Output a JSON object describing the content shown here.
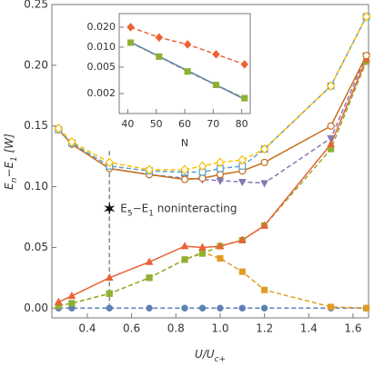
{
  "chart_data": [
    {
      "type": "line",
      "x_label": [
        {
          "text": "U/U"
        },
        {
          "text": "c+",
          "sub": true
        }
      ],
      "y_label": [
        {
          "text": "E"
        },
        {
          "text": "n",
          "sub": true
        },
        {
          "text": "−E"
        },
        {
          "text": "1",
          "sub": true
        },
        {
          "text": " [W]"
        }
      ],
      "x": [
        0.27,
        0.33,
        0.5,
        0.68,
        0.84,
        0.92,
        1.0,
        1.1,
        1.2,
        1.5,
        1.66
      ],
      "xlim": [
        0.24,
        1.67
      ],
      "ylim": [
        -0.008,
        0.25
      ],
      "xticks": [
        0.4,
        0.6,
        0.8,
        {
          "value": 1.0,
          "label": "1.0"
        },
        1.2,
        1.4,
        1.6
      ],
      "yticks": [
        {
          "value": 0,
          "label": "0.00"
        },
        {
          "value": 0.05,
          "label": "0.05"
        },
        {
          "value": 0.1,
          "label": "0.10"
        },
        {
          "value": 0.15,
          "label": "0.15"
        },
        {
          "value": 0.2,
          "label": "0.20"
        },
        {
          "value": 0.25,
          "label": "0.25"
        }
      ],
      "grid": false,
      "series": [
        {
          "color": "#5e81b5",
          "marker": "circle",
          "filled": true,
          "line": "dashed",
          "values": [
            0,
            0,
            0,
            0,
            0,
            0,
            0,
            0,
            0,
            0,
            0
          ]
        },
        {
          "color": "#e19c24",
          "marker": "square",
          "filled": true,
          "line": "dashed",
          "values": [
            0.002,
            0.004,
            0.012,
            0.025,
            0.04,
            0.046,
            0.041,
            0.03,
            0.015,
            0.001,
            0
          ]
        },
        {
          "color": "#8fb032",
          "marker": "square",
          "filled": true,
          "line": "dashed",
          "values": [
            0.002,
            0.004,
            0.012,
            0.025,
            0.04,
            0.045,
            0.051,
            0.056,
            0.068,
            0.131,
            0.203
          ]
        },
        {
          "color": "#eb6235",
          "marker": "triangle",
          "filled": true,
          "line": "solid",
          "values": [
            0.005,
            0.01,
            0.025,
            0.038,
            0.051,
            0.05,
            0.051,
            0.056,
            0.068,
            0.135,
            0.205
          ]
        },
        {
          "color": "#8778b3",
          "marker": "triangle-down",
          "filled": true,
          "line": "dashed",
          "values": [
            0.147,
            0.135,
            0.115,
            0.11,
            0.107,
            0.106,
            0.105,
            0.104,
            0.103,
            0.14,
            0.208
          ]
        },
        {
          "color": "#c56e1a",
          "marker": "circle",
          "filled": false,
          "line": "solid",
          "values": [
            0.147,
            0.135,
            0.115,
            0.11,
            0.106,
            0.107,
            0.11,
            0.113,
            0.12,
            0.15,
            0.208
          ]
        },
        {
          "color": "#5d9ec7",
          "marker": "square",
          "filled": false,
          "line": "dashed",
          "values": [
            0.147,
            0.136,
            0.117,
            0.113,
            0.112,
            0.112,
            0.115,
            0.117,
            0.131,
            0.183,
            0.24
          ]
        },
        {
          "color": "#ffbf00",
          "marker": "diamond",
          "filled": false,
          "line": "dashed",
          "values": [
            0.148,
            0.137,
            0.12,
            0.114,
            0.114,
            0.117,
            0.12,
            0.122,
            0.131,
            0.183,
            0.24
          ]
        }
      ],
      "vline": {
        "x": 0.5,
        "y": [
          0,
          0.13
        ]
      },
      "annotation": {
        "x": 0.5,
        "y": 0.082,
        "segments": [
          {
            "text": "E"
          },
          {
            "text": "5",
            "sub": true
          },
          {
            "text": "−E"
          },
          {
            "text": "1",
            "sub": true
          },
          {
            "text": " noninteracting"
          }
        ]
      }
    },
    {
      "type": "line",
      "x_label": [
        {
          "text": "N"
        }
      ],
      "x": [
        41,
        51,
        61,
        71,
        81
      ],
      "xlim": [
        37,
        83
      ],
      "ylim": [
        0.001,
        0.032
      ],
      "log_y": true,
      "xticks": [
        40,
        50,
        60,
        70,
        80
      ],
      "yticks": [
        0.002,
        0.005,
        {
          "value": 0.01,
          "label": "0.010"
        },
        {
          "value": 0.02,
          "label": "0.020"
        }
      ],
      "series": [
        {
          "color": "#eb6235",
          "marker": "diamond",
          "filled": true,
          "line": "dashed",
          "values": [
            0.02,
            0.014,
            0.011,
            0.0078,
            0.0055
          ]
        },
        {
          "color": "#8fb032",
          "marker": "square",
          "filled": true,
          "line": "dashed",
          "values": [
            0.0117,
            0.0072,
            0.0043,
            0.0027,
            0.0017
          ]
        },
        {
          "color": "#5e81b5",
          "marker": "none",
          "line": "solid",
          "x": [
            40,
            81.5
          ],
          "values": [
            0.0125,
            0.0016
          ]
        }
      ]
    }
  ]
}
